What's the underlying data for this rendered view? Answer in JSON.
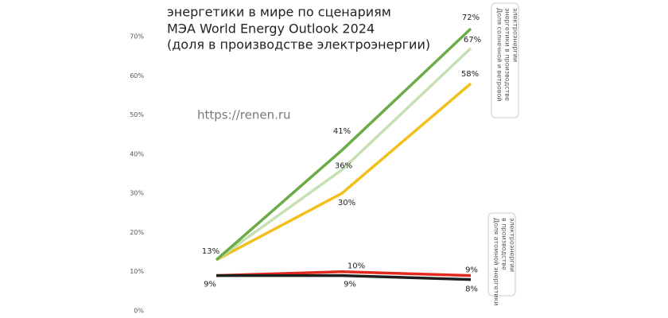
{
  "chart_data": {
    "type": "line",
    "title": [
      "энергетики в мире по сценариям",
      "МЭА World Energy Outlook 2024",
      "(доля в производстве электроэнергии)"
    ],
    "watermark": "https://renen.ru",
    "annotations": [
      {
        "lines": [
          "Доля солнечной и ветровой",
          "энергетики в производстве",
          "электроэнергии"
        ]
      },
      {
        "lines": [
          "Доля атомной энергетики",
          "в производстве",
          "электроэнергии"
        ]
      }
    ],
    "categories": [
      null,
      null,
      null
    ],
    "ylim": [
      0,
      80
    ],
    "yticks": [
      {
        "value": 0,
        "label": "0%"
      },
      {
        "value": 10,
        "label": "10%"
      },
      {
        "value": 20,
        "label": "20%"
      },
      {
        "value": 30,
        "label": "30%"
      },
      {
        "value": 40,
        "label": "40%"
      },
      {
        "value": 50,
        "label": "50%"
      },
      {
        "value": 60,
        "label": "60%"
      },
      {
        "value": 70,
        "label": "70%"
      }
    ],
    "series": [
      {
        "color": "#e02a1e",
        "values": [
          9,
          10,
          9
        ],
        "value_labels": [
          "9%",
          "10%",
          "9%"
        ]
      },
      {
        "color": "#1e1e1e",
        "values": [
          9,
          9,
          8
        ],
        "value_labels": [
          null,
          "9%",
          "8%"
        ]
      },
      {
        "color": "#f2c01c",
        "values": [
          13,
          30,
          58
        ],
        "value_labels": [
          null,
          "30%",
          "58%"
        ]
      },
      {
        "color": "#c6e0b4",
        "values": [
          13,
          36,
          67
        ],
        "value_labels": [
          null,
          "36%",
          "67%"
        ]
      },
      {
        "color": "#6aac46",
        "values": [
          13,
          41,
          72
        ],
        "value_labels": [
          "13%",
          "41%",
          "72%"
        ]
      }
    ]
  }
}
